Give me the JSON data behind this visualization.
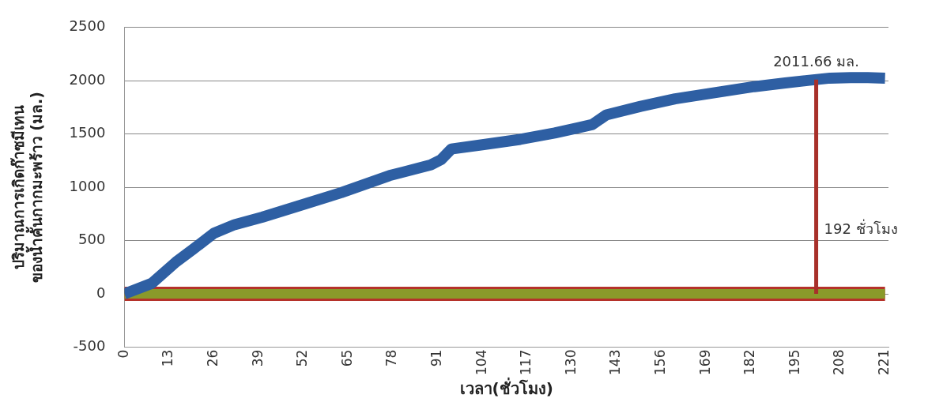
{
  "chart_data": {
    "type": "line",
    "xlabel": "เวลา(ชั่วโมง)",
    "ylabel": "ปริมาณการเกิดก๊าซมีเทน\nของน้ำคั้นกากมะพร้าว (มล.)",
    "xlim": [
      0,
      222
    ],
    "xticks": [
      0,
      13,
      26,
      39,
      52,
      65,
      78,
      91,
      104,
      117,
      130,
      143,
      156,
      169,
      182,
      195,
      208,
      221
    ],
    "ylim": [
      -500,
      2500
    ],
    "yticks": [
      -500,
      0,
      500,
      1000,
      1500,
      2000,
      2500
    ],
    "grid": "y",
    "legend": false,
    "marker": "none",
    "line_style": "solid",
    "series": [
      {
        "color": "#b5322a",
        "x": [
          0,
          221
        ],
        "values": [
          0,
          0
        ]
      },
      {
        "color": "#8a9a2a",
        "x": [
          0,
          221
        ],
        "values": [
          0,
          0
        ]
      },
      {
        "color": "#2e5fa3",
        "x": [
          0,
          8,
          15,
          20,
          26,
          32,
          40,
          50,
          63,
          77,
          89,
          92,
          95,
          104,
          115,
          125,
          132,
          136,
          140,
          150,
          160,
          170,
          183,
          192,
          199,
          205,
          211,
          216,
          221
        ],
        "values": [
          0,
          100,
          300,
          420,
          570,
          650,
          720,
          820,
          950,
          1110,
          1210,
          1260,
          1360,
          1400,
          1450,
          1510,
          1560,
          1590,
          1680,
          1760,
          1830,
          1880,
          1945,
          1980,
          2005,
          2025,
          2030,
          2030,
          2025
        ]
      },
      {
        "color": "#a8302a",
        "x": [
          201,
          201
        ],
        "values": [
          0,
          2011.66
        ]
      }
    ],
    "annotations": [
      {
        "text": "2011.66 มล.",
        "x": 201,
        "y": 2011.66
      },
      {
        "text": "192 ชั่วโมง",
        "x": 201,
        "y": 600
      }
    ]
  }
}
